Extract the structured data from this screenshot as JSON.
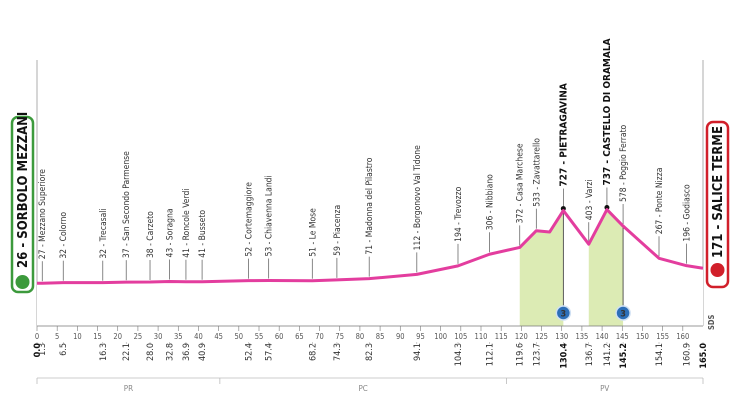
{
  "chart_data": {
    "type": "area",
    "start_label": "26 - SORBOLO MEZZANI",
    "finish_label": "171 - SALICE TERME",
    "brand": "SDS",
    "x": [
      0,
      1.3,
      6.5,
      16.3,
      22.1,
      28,
      32.8,
      36.9,
      40.9,
      52.4,
      57.4,
      68.2,
      74.3,
      82.3,
      94.1,
      104.3,
      112.1,
      119.6,
      123.7,
      127,
      130.4,
      136.7,
      141.2,
      145.2,
      154.1,
      160.9,
      165
    ],
    "values": [
      26,
      27,
      32,
      32,
      37,
      38,
      43,
      41,
      41,
      52,
      53,
      51,
      59,
      71,
      112,
      194,
      306,
      372,
      533,
      520,
      727,
      403,
      737,
      578,
      267,
      196,
      171
    ],
    "color": "#e33d9e",
    "climb_color": "#dcebb4",
    "climbs": [
      {
        "from": 119.6,
        "to": 130.4,
        "category": "3"
      },
      {
        "from": 136.7,
        "to": 145.2,
        "category": "3"
      }
    ],
    "xmarkers": [
      {
        "value": 0,
        "label": "0.0"
      },
      1.3,
      6.5,
      16.3,
      22.1,
      {
        "value": 28,
        "label": "28.0"
      },
      32.8,
      36.9,
      40.9,
      52.4,
      57.4,
      68.2,
      74.3,
      82.3,
      94.1,
      104.3,
      112.1,
      119.6,
      123.7,
      130.4,
      136.7,
      141.2,
      145.2,
      154.1,
      160.9,
      {
        "value": 165,
        "label": "165.0"
      }
    ],
    "waypoints": [
      {
        "km": 1.3,
        "alt": 27,
        "label": "27 - Mezzano Superiore"
      },
      {
        "km": 6.5,
        "alt": 32,
        "label": "32 - Colorno"
      },
      {
        "km": 16.3,
        "alt": 32,
        "label": "32 - Trecasali"
      },
      {
        "km": 22.1,
        "alt": 37,
        "label": "37 - San Secondo Parmense"
      },
      {
        "km": 28,
        "alt": 38,
        "label": "38 - Carzeto"
      },
      {
        "km": 32.8,
        "alt": 43,
        "label": "43 - Soragna"
      },
      {
        "km": 36.9,
        "alt": 41,
        "label": "41 - Roncole Verdi"
      },
      {
        "km": 40.9,
        "alt": 41,
        "label": "41 - Busseto"
      },
      {
        "km": 52.4,
        "alt": 52,
        "label": "52 - Cortemaggiore"
      },
      {
        "km": 57.4,
        "alt": 53,
        "label": "53 - Chiavenna Landi"
      },
      {
        "km": 68.2,
        "alt": 51,
        "label": "51 - Le Mose"
      },
      {
        "km": 74.3,
        "alt": 59,
        "label": "59 - Piacenza"
      },
      {
        "km": 82.3,
        "alt": 71,
        "label": "71 - Madonna del Pilastro"
      },
      {
        "km": 94.1,
        "alt": 112,
        "label": "112 - Borgonovo Val Tidone"
      },
      {
        "km": 104.3,
        "alt": 194,
        "label": "194 - Trevozzo"
      },
      {
        "km": 112.1,
        "alt": 306,
        "label": "306 - Nibbiano"
      },
      {
        "km": 119.6,
        "alt": 372,
        "label": "372 - Casa Marchese"
      },
      {
        "km": 123.7,
        "alt": 533,
        "label": "533 - Zavattarello"
      },
      {
        "km": 130.4,
        "alt": 727,
        "label": "727 - PIETRAGAVINA"
      },
      {
        "km": 136.7,
        "alt": 403,
        "label": "403 - Varzi"
      },
      {
        "km": 141.2,
        "alt": 737,
        "label": "737 - CASTELLO DI ORAMALA"
      },
      {
        "km": 145.2,
        "alt": 578,
        "label": "578 - Poggio Ferrato"
      },
      {
        "km": 154.1,
        "alt": 267,
        "label": "267 - Ponte Nizza"
      },
      {
        "km": 160.9,
        "alt": 196,
        "label": "196 - Godiasco"
      }
    ],
    "xlim": [
      0,
      165
    ],
    "xticks": [
      0,
      5,
      10,
      15,
      20,
      25,
      30,
      35,
      40,
      45,
      50,
      55,
      60,
      65,
      70,
      75,
      80,
      85,
      90,
      95,
      100,
      105,
      110,
      115,
      120,
      125,
      130,
      135,
      140,
      145,
      150,
      155,
      160
    ],
    "ylim": [
      0,
      800
    ],
    "yticks": [
      100,
      200,
      300,
      400,
      500,
      600
    ],
    "regions": [
      {
        "name": "PR",
        "end": 45.3
      },
      {
        "name": "PC",
        "end": 116.3
      },
      {
        "name": "PV",
        "end": 165
      }
    ]
  }
}
